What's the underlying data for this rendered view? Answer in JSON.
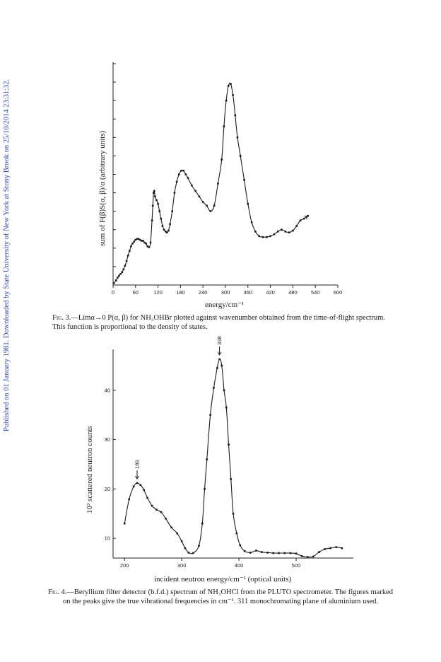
{
  "sidebar_note": "Published on 01 January 1981. Downloaded by State University of New York at Stony Brook on 25/10/2014 23:31:32.",
  "fig3": {
    "caption_label": "Fig. 3.",
    "caption_text": "—Limα→0 P(α, β) for NH₃OHBr plotted against wavenumber obtained from the time-of-flight spectrum. This function is proportional to the density of states.",
    "xlabel": "energy/cm⁻¹",
    "ylabel": "sum of F(β)S(α, β)/α (arbitrary units)"
  },
  "fig4": {
    "caption_label": "Fig. 4.",
    "caption_text": "—Beryllium filter detector (b.f.d.) spectrum of NH₃OHCl from the PLUTO spectrometer. The figures marked on the peaks give the true vibrational frequencies in cm⁻¹. 311 monochromating plane of aluminium used.",
    "xlabel": "incident neutron energy/cm⁻¹ (optical units)",
    "ylabel": "10³ scattered neutron counts"
  },
  "chart_data": [
    {
      "type": "line",
      "title": "",
      "xlabel": "energy/cm⁻¹",
      "ylabel": "sum of F(β)S(α, β)/α (arbitrary units)",
      "xlim": [
        0,
        600
      ],
      "ylim": [
        0,
        12
      ],
      "x_ticks": [
        0,
        60,
        120,
        180,
        240,
        300,
        360,
        420,
        480,
        540,
        600
      ],
      "y_ticks": [
        1,
        2,
        3,
        4,
        5,
        6,
        7,
        8,
        9,
        10,
        11,
        12
      ],
      "y_tick_labels_shown": false,
      "grid": false,
      "series": [
        {
          "x": [
            2,
            8,
            12,
            16,
            20,
            24,
            28,
            32,
            36,
            40,
            44,
            48,
            52,
            56,
            60,
            64,
            68,
            72,
            76,
            80,
            84,
            88,
            92,
            96,
            100,
            104,
            106,
            108,
            110,
            112,
            116,
            120,
            124,
            128,
            132,
            136,
            140,
            144,
            148,
            152,
            158,
            164,
            170,
            176,
            182,
            188,
            194,
            200,
            210,
            220,
            230,
            240,
            250,
            260,
            270,
            280,
            290,
            296,
            302,
            308,
            314,
            320,
            326,
            332,
            340,
            350,
            360,
            370,
            380,
            390,
            400,
            410,
            420,
            430,
            440,
            450,
            460,
            470,
            480,
            490,
            500,
            510,
            520
          ],
          "y": [
            0.1,
            0.25,
            0.4,
            0.5,
            0.6,
            0.7,
            0.85,
            1.05,
            1.3,
            1.6,
            1.85,
            2.1,
            2.25,
            2.35,
            2.45,
            2.5,
            2.5,
            2.45,
            2.4,
            2.4,
            2.3,
            2.25,
            2.1,
            2.05,
            2.3,
            3.5,
            4.3,
            5.0,
            5.1,
            4.8,
            4.6,
            4.4,
            4.0,
            3.6,
            3.2,
            3.0,
            2.9,
            2.85,
            2.95,
            3.3,
            4.0,
            5.0,
            5.6,
            6.0,
            6.2,
            6.2,
            6.0,
            5.8,
            5.4,
            5.1,
            4.8,
            4.5,
            4.3,
            4.0,
            4.3,
            5.5,
            6.8,
            8.6,
            10.0,
            10.8,
            10.9,
            10.3,
            9.2,
            8.0,
            7.0,
            5.7,
            4.4,
            3.4,
            2.9,
            2.65,
            2.6,
            2.6,
            2.65,
            2.75,
            2.9,
            3.0,
            2.9,
            2.85,
            2.95,
            3.2,
            3.5,
            3.6,
            3.75
          ]
        }
      ]
    },
    {
      "type": "line",
      "title": "",
      "xlabel": "incident neutron energy/cm⁻¹ (optical units)",
      "ylabel": "10³ scattered neutron counts",
      "xlim": [
        180,
        600
      ],
      "ylim": [
        6,
        48
      ],
      "x_ticks": [
        200,
        300,
        400,
        500
      ],
      "y_ticks": [
        10,
        20,
        30,
        40
      ],
      "grid": false,
      "annotations": [
        {
          "label": "189",
          "x": 222,
          "y": 21.2
        },
        {
          "label": "338",
          "x": 366,
          "y": 46.3
        }
      ],
      "series": [
        {
          "x": [
            200,
            208,
            216,
            222,
            228,
            234,
            240,
            248,
            256,
            264,
            272,
            282,
            292,
            300,
            306,
            312,
            320,
            330,
            336,
            340,
            344,
            350,
            356,
            362,
            366,
            370,
            374,
            378,
            382,
            386,
            390,
            396,
            402,
            410,
            420,
            430,
            440,
            450,
            460,
            470,
            480,
            490,
            500,
            510,
            520,
            530,
            540,
            550,
            560,
            570,
            580
          ],
          "y": [
            13,
            17.9,
            20.5,
            21.2,
            20.8,
            19.8,
            18.2,
            16.6,
            15.8,
            15.3,
            14.0,
            12.2,
            11.0,
            9.4,
            8.0,
            7.1,
            7.0,
            8.5,
            13.0,
            20.0,
            26.0,
            35.0,
            40.5,
            44.5,
            46.3,
            45.0,
            40.0,
            36.5,
            29.0,
            22.0,
            15.0,
            11.0,
            8.6,
            7.4,
            7.1,
            7.5,
            7.2,
            7.1,
            7.0,
            7.0,
            7.0,
            7.0,
            6.9,
            6.4,
            6.2,
            6.3,
            7.2,
            7.8,
            8.0,
            8.2,
            8.0
          ]
        }
      ]
    }
  ]
}
